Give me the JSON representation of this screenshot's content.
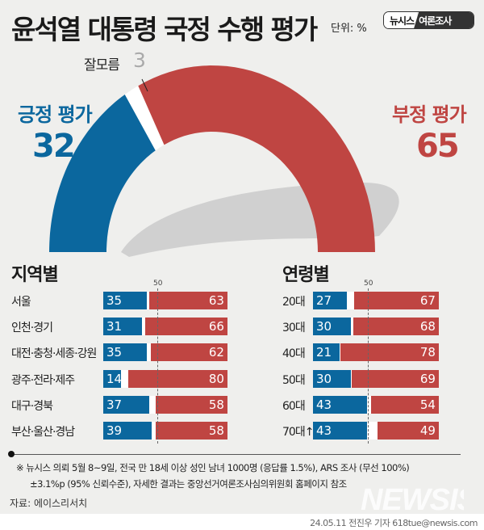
{
  "header": {
    "title": "윤석열 대통령 국정 수행 평가",
    "unit": "단위: %",
    "logo_left": "뉴시스",
    "logo_right": "여론조사"
  },
  "colors": {
    "positive": "#0b679e",
    "negative": "#bf4542",
    "dont_know": "#ffffff",
    "background": "#efefed"
  },
  "chart_data": [
    {
      "type": "pie",
      "subtype": "half-donut",
      "slices": [
        {
          "name": "긍정 평가",
          "value": 32
        },
        {
          "name": "잘모름",
          "value": 3
        },
        {
          "name": "부정 평가",
          "value": 65
        }
      ]
    },
    {
      "type": "bar",
      "orientation": "horizontal",
      "title": "지역별",
      "reference_line": 50,
      "reference_label": "50",
      "categories": [
        "서울",
        "인천·경기",
        "대전·충청·세종·강원",
        "광주·전라·제주",
        "대구·경북",
        "부산·울산·경남"
      ],
      "series": [
        {
          "name": "긍정 평가",
          "values": [
            35,
            31,
            35,
            14,
            37,
            39
          ]
        },
        {
          "name": "부정 평가",
          "values": [
            63,
            66,
            62,
            80,
            58,
            58
          ]
        }
      ],
      "xlim": [
        0,
        100
      ]
    },
    {
      "type": "bar",
      "orientation": "horizontal",
      "title": "연령별",
      "reference_line": 50,
      "reference_label": "50",
      "categories": [
        "20대",
        "30대",
        "40대",
        "50대",
        "60대",
        "70대↑"
      ],
      "series": [
        {
          "name": "긍정 평가",
          "values": [
            27,
            30,
            21,
            30,
            43,
            43
          ]
        },
        {
          "name": "부정 평가",
          "values": [
            67,
            68,
            78,
            69,
            54,
            49
          ]
        }
      ],
      "xlim": [
        0,
        100
      ]
    }
  ],
  "labels": {
    "positive": "긍정 평가",
    "negative": "부정 평가",
    "dont_know": "잘모름",
    "positive_value": "32",
    "negative_value": "65",
    "dont_know_value": "3"
  },
  "footer": {
    "note1": "※  뉴시스 의뢰 5월 8~9일, 전국 만 18세 이상 성인 남녀 1000명 (응답률 1.5%), ARS 조사 (무선 100%)",
    "note2": "±3.1%p (95% 신뢰수준), 자세한 결과는 중앙선거여론조사심의위원회 홈페이지 참조",
    "source": "자료:  에이스리서치",
    "credit": "24.05.11  전진우 기자  618tue@newsis.com",
    "watermark": "NEWSIS"
  }
}
